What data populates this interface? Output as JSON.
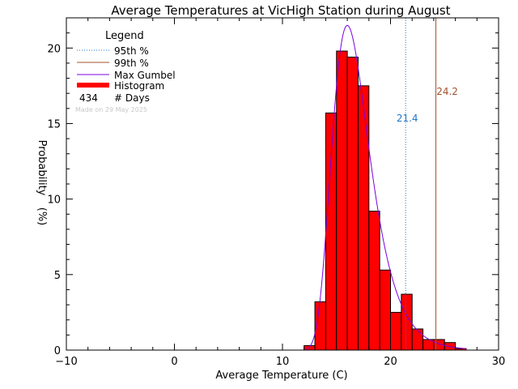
{
  "chart_data": {
    "type": "bar",
    "title": "Average Temperatures at VicHigh Station during August",
    "xlabel": "Average Temperature (C)",
    "ylabel": "Probability",
    "ylabel_unit": "(%)",
    "xlim": [
      -10,
      30
    ],
    "ylim": [
      0,
      22
    ],
    "grid": false,
    "x_ticks": [
      -10,
      0,
      10,
      20,
      30
    ],
    "y_ticks": [
      0,
      5,
      10,
      15,
      20
    ],
    "bin_width": 1,
    "histogram": {
      "name": "Histogram",
      "color": "#ff0000",
      "bin_starts": [
        12,
        13,
        14,
        15,
        16,
        17,
        18,
        19,
        20,
        21,
        22,
        23,
        24,
        25,
        26
      ],
      "values": [
        0.3,
        3.2,
        15.7,
        19.8,
        19.4,
        17.5,
        9.2,
        5.3,
        2.5,
        3.7,
        1.4,
        0.7,
        0.7,
        0.5,
        0.1
      ]
    },
    "gumbel": {
      "name": "Max Gumbel",
      "color": "#7b00e0",
      "mode": 16.0,
      "peak": 21.5,
      "scale": 1.72,
      "x_range": [
        12.2,
        27.0
      ]
    },
    "percentiles": [
      {
        "name": "95th %",
        "value": 21.4,
        "label": "21.4",
        "color": "#1f77c8",
        "style": "dotted"
      },
      {
        "name": "99th %",
        "value": 24.2,
        "label": "24.2",
        "color": "#a0522d",
        "style": "solid"
      }
    ],
    "legend": {
      "title": "Legend",
      "placement": "top-left",
      "entries": [
        {
          "label": "95th %",
          "kind": "dotted-line",
          "color": "#1f77c8"
        },
        {
          "label": "99th %",
          "kind": "line",
          "color": "#a0522d"
        },
        {
          "label": "Max Gumbel",
          "kind": "line",
          "color": "#7b00e0"
        },
        {
          "label": "Histogram",
          "kind": "thick-line",
          "color": "#ff0000"
        }
      ],
      "count_value": "434",
      "count_label": "# Days"
    },
    "made_on": "Made on 29 May 2025"
  }
}
